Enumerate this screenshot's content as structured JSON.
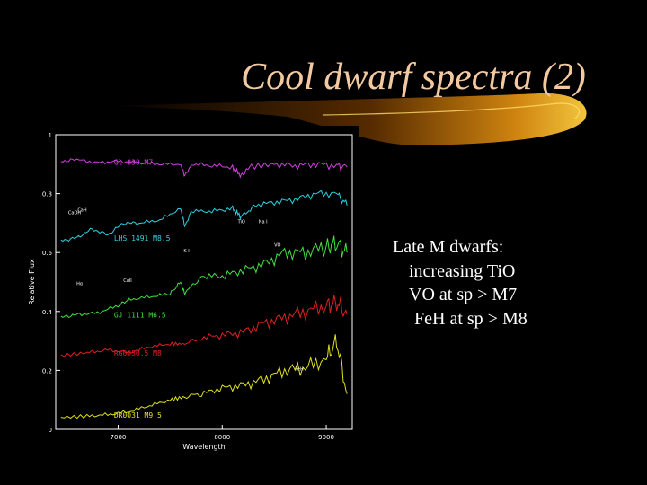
{
  "slide": {
    "title": "Cool dwarf spectra (2)",
    "notes": [
      "Late M dwarfs:",
      "increasing TiO",
      "VO at sp > M7",
      "FeH at sp > M8"
    ]
  },
  "chart_data": {
    "type": "line",
    "title": "",
    "xlabel": "Wavelength",
    "ylabel": "Relative Flux",
    "xlim": [
      6400,
      9250
    ],
    "ylim": [
      0,
      1
    ],
    "x_ticks": [
      "7000",
      "8000",
      "9000"
    ],
    "y_ticks": [
      "0",
      "0.2",
      "0.4",
      "0.6",
      "0.8",
      "1"
    ],
    "grid": false,
    "series": [
      {
        "name": "Gl 830 M7",
        "color": "#d040e0",
        "x": [
          6450,
          6600,
          6800,
          7000,
          7200,
          7400,
          7600,
          7640,
          7700,
          7900,
          8100,
          8183,
          8250,
          8500,
          8700,
          8900,
          9100,
          9200
        ],
        "y": [
          0.91,
          0.915,
          0.905,
          0.91,
          0.905,
          0.9,
          0.9,
          0.86,
          0.9,
          0.895,
          0.89,
          0.86,
          0.89,
          0.9,
          0.895,
          0.9,
          0.895,
          0.89
        ]
      },
      {
        "name": "LHS 1491 M8.5",
        "color": "#30d0e0",
        "x": [
          6450,
          6600,
          6750,
          6900,
          7050,
          7200,
          7400,
          7600,
          7640,
          7700,
          7900,
          8100,
          8183,
          8300,
          8500,
          8700,
          8900,
          9100,
          9200
        ],
        "y": [
          0.64,
          0.65,
          0.68,
          0.66,
          0.7,
          0.7,
          0.71,
          0.75,
          0.69,
          0.74,
          0.74,
          0.75,
          0.72,
          0.76,
          0.77,
          0.78,
          0.8,
          0.8,
          0.76
        ]
      },
      {
        "name": "GJ 1111 M6.5",
        "color": "#40e040",
        "x": [
          6450,
          6600,
          6800,
          7000,
          7100,
          7300,
          7500,
          7600,
          7640,
          7800,
          8000,
          8200,
          8400,
          8600,
          8800,
          9000,
          9100,
          9200
        ],
        "y": [
          0.38,
          0.39,
          0.395,
          0.42,
          0.44,
          0.45,
          0.46,
          0.5,
          0.46,
          0.52,
          0.52,
          0.54,
          0.56,
          0.6,
          0.6,
          0.62,
          0.63,
          0.6
        ]
      },
      {
        "name": "RG0050.5 M8",
        "color": "#e02020",
        "x": [
          6450,
          6700,
          6900,
          7100,
          7300,
          7500,
          7640,
          7800,
          8000,
          8200,
          8400,
          8600,
          8800,
          9000,
          9100,
          9200
        ],
        "y": [
          0.25,
          0.26,
          0.27,
          0.26,
          0.28,
          0.29,
          0.29,
          0.31,
          0.32,
          0.33,
          0.36,
          0.38,
          0.4,
          0.42,
          0.43,
          0.39
        ]
      },
      {
        "name": "DR0031 M9.5",
        "color": "#e0e020",
        "x": [
          6450,
          6700,
          6900,
          7100,
          7300,
          7500,
          7640,
          7800,
          8000,
          8200,
          8400,
          8600,
          8800,
          9000,
          9100,
          9200
        ],
        "y": [
          0.04,
          0.045,
          0.05,
          0.06,
          0.08,
          0.1,
          0.11,
          0.12,
          0.14,
          0.15,
          0.17,
          0.2,
          0.21,
          0.24,
          0.3,
          0.12
        ]
      }
    ],
    "annotations": [
      "CaOH",
      "CaH",
      "TiO",
      "Na I",
      "K I",
      "CaII",
      "VO",
      "FeH",
      "Hα"
    ]
  }
}
